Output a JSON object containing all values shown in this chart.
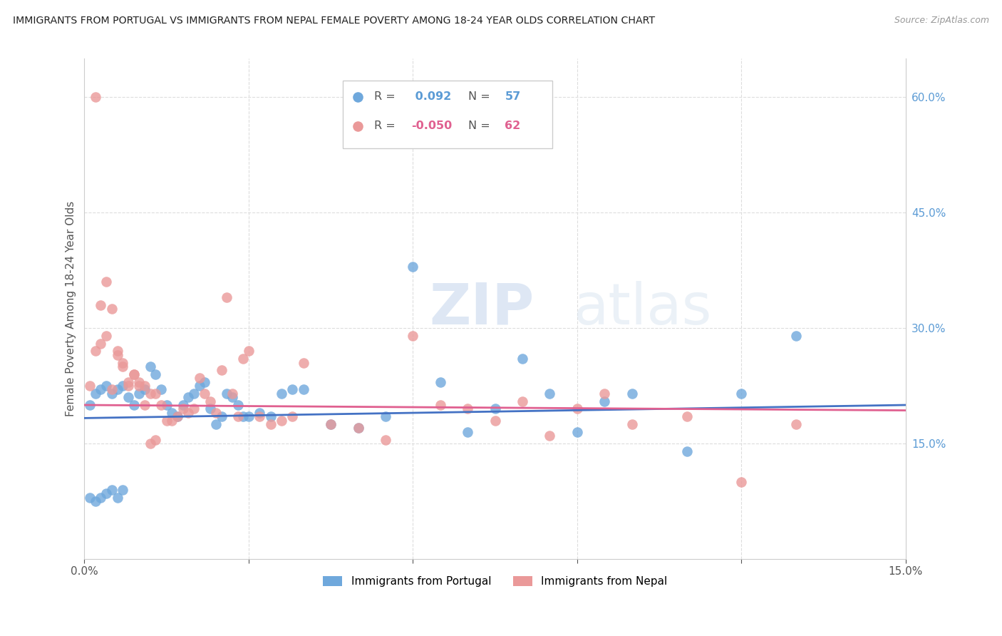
{
  "title": "IMMIGRANTS FROM PORTUGAL VS IMMIGRANTS FROM NEPAL FEMALE POVERTY AMONG 18-24 YEAR OLDS CORRELATION CHART",
  "source": "Source: ZipAtlas.com",
  "ylabel": "Female Poverty Among 18-24 Year Olds",
  "legend_blue_R": "0.092",
  "legend_blue_N": "57",
  "legend_pink_R": "-0.050",
  "legend_pink_N": "62",
  "legend_blue_label": "Immigrants from Portugal",
  "legend_pink_label": "Immigrants from Nepal",
  "blue_color": "#6fa8dc",
  "pink_color": "#ea9999",
  "blue_line_color": "#4472c4",
  "pink_line_color": "#e06090",
  "watermark_zip": "ZIP",
  "watermark_atlas": "atlas",
  "blue_x": [
    0.001,
    0.002,
    0.003,
    0.004,
    0.005,
    0.006,
    0.007,
    0.008,
    0.009,
    0.01,
    0.011,
    0.012,
    0.013,
    0.014,
    0.015,
    0.016,
    0.017,
    0.018,
    0.019,
    0.02,
    0.021,
    0.022,
    0.023,
    0.024,
    0.025,
    0.026,
    0.027,
    0.028,
    0.029,
    0.03,
    0.032,
    0.034,
    0.036,
    0.038,
    0.04,
    0.045,
    0.05,
    0.055,
    0.06,
    0.065,
    0.07,
    0.075,
    0.08,
    0.085,
    0.09,
    0.095,
    0.1,
    0.11,
    0.12,
    0.13,
    0.001,
    0.002,
    0.003,
    0.004,
    0.005,
    0.006,
    0.007
  ],
  "blue_y": [
    0.2,
    0.215,
    0.22,
    0.225,
    0.215,
    0.22,
    0.225,
    0.21,
    0.2,
    0.215,
    0.22,
    0.25,
    0.24,
    0.22,
    0.2,
    0.19,
    0.185,
    0.2,
    0.21,
    0.215,
    0.225,
    0.23,
    0.195,
    0.175,
    0.185,
    0.215,
    0.21,
    0.2,
    0.185,
    0.185,
    0.19,
    0.185,
    0.215,
    0.22,
    0.22,
    0.175,
    0.17,
    0.185,
    0.38,
    0.23,
    0.165,
    0.195,
    0.26,
    0.215,
    0.165,
    0.205,
    0.215,
    0.14,
    0.215,
    0.29,
    0.08,
    0.075,
    0.08,
    0.085,
    0.09,
    0.08,
    0.09
  ],
  "pink_x": [
    0.001,
    0.002,
    0.003,
    0.004,
    0.005,
    0.006,
    0.007,
    0.008,
    0.009,
    0.01,
    0.011,
    0.012,
    0.013,
    0.014,
    0.015,
    0.016,
    0.017,
    0.018,
    0.019,
    0.02,
    0.021,
    0.022,
    0.023,
    0.024,
    0.025,
    0.026,
    0.027,
    0.028,
    0.029,
    0.03,
    0.032,
    0.034,
    0.036,
    0.038,
    0.04,
    0.045,
    0.05,
    0.055,
    0.06,
    0.065,
    0.07,
    0.075,
    0.08,
    0.085,
    0.09,
    0.095,
    0.1,
    0.11,
    0.12,
    0.13,
    0.002,
    0.003,
    0.004,
    0.005,
    0.006,
    0.007,
    0.008,
    0.009,
    0.01,
    0.011,
    0.012,
    0.013
  ],
  "pink_y": [
    0.225,
    0.27,
    0.28,
    0.29,
    0.22,
    0.27,
    0.25,
    0.225,
    0.24,
    0.225,
    0.2,
    0.215,
    0.215,
    0.2,
    0.18,
    0.18,
    0.185,
    0.195,
    0.19,
    0.195,
    0.235,
    0.215,
    0.205,
    0.19,
    0.245,
    0.34,
    0.215,
    0.185,
    0.26,
    0.27,
    0.185,
    0.175,
    0.18,
    0.185,
    0.255,
    0.175,
    0.17,
    0.155,
    0.29,
    0.2,
    0.195,
    0.18,
    0.205,
    0.16,
    0.195,
    0.215,
    0.175,
    0.185,
    0.1,
    0.175,
    0.6,
    0.33,
    0.36,
    0.325,
    0.265,
    0.255,
    0.23,
    0.24,
    0.23,
    0.225,
    0.15,
    0.155
  ]
}
